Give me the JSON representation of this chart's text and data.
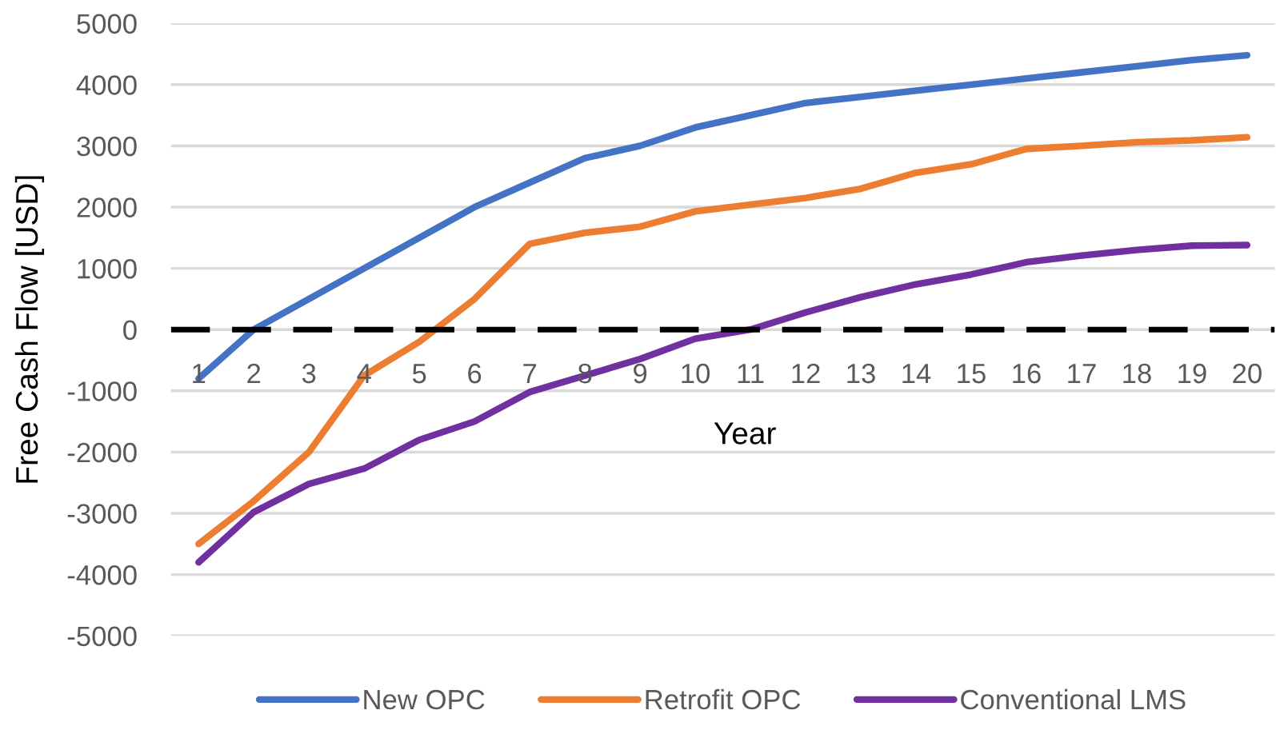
{
  "chart_data": {
    "type": "line",
    "xlabel": "Year",
    "ylabel": "Free Cash Flow [USD]",
    "categories": [
      "1",
      "2",
      "3",
      "4",
      "5",
      "6",
      "7",
      "8",
      "9",
      "10",
      "11",
      "12",
      "13",
      "14",
      "15",
      "16",
      "17",
      "18",
      "19",
      "20"
    ],
    "series": [
      {
        "name": "New OPC",
        "color": "#4472c4",
        "values": [
          -800,
          0,
          500,
          1000,
          1500,
          2000,
          2400,
          2800,
          3000,
          3300,
          3500,
          3700,
          3800,
          3900,
          4000,
          4100,
          4200,
          4300,
          4400,
          4480
        ]
      },
      {
        "name": "Retrofit OPC",
        "color": "#ed7d31",
        "values": [
          -3500,
          -2800,
          -2000,
          -750,
          -200,
          500,
          1400,
          1580,
          1680,
          1930,
          2040,
          2150,
          2300,
          2560,
          2700,
          2950,
          3000,
          3060,
          3090,
          3140
        ]
      },
      {
        "name": "Conventional LMS",
        "color": "#7030a0",
        "values": [
          -3800,
          -2980,
          -2520,
          -2270,
          -1800,
          -1500,
          -1020,
          -750,
          -480,
          -150,
          0,
          280,
          530,
          740,
          900,
          1100,
          1210,
          1300,
          1370,
          1380
        ]
      }
    ],
    "ylim": [
      -5000,
      5000
    ],
    "yticks": [
      -5000,
      -4000,
      -3000,
      -2000,
      -1000,
      0,
      1000,
      2000,
      3000,
      4000,
      5000
    ],
    "ref_lines": [
      {
        "axis": "y",
        "value": 0,
        "color": "#000000",
        "line_style": "dashed"
      }
    ],
    "grid": "y",
    "legend": "bottom",
    "marker": "none",
    "line_style": "solid"
  }
}
